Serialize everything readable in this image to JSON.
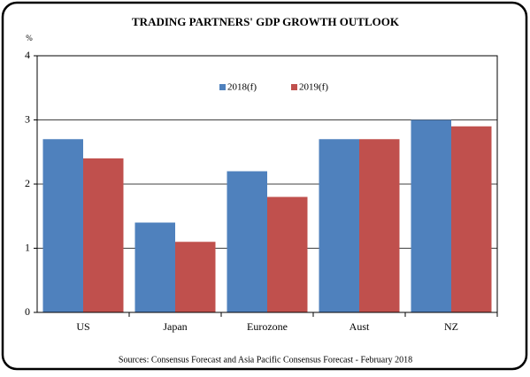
{
  "chart_data": {
    "type": "bar",
    "title": "TRADING PARTNERS' GDP GROWTH OUTLOOK",
    "y_label": "%",
    "categories": [
      "US",
      "Japan",
      "Eurozone",
      "Aust",
      "NZ"
    ],
    "series": [
      {
        "name": "2018(f)",
        "color": "#4f81bd",
        "values": [
          2.7,
          1.4,
          2.2,
          2.7,
          3.0
        ]
      },
      {
        "name": "2019(f)",
        "color": "#c0504d",
        "values": [
          2.4,
          1.1,
          1.8,
          2.7,
          2.9
        ]
      }
    ],
    "ylim": [
      0,
      4
    ],
    "yticks": [
      0,
      1,
      2,
      3,
      4
    ],
    "grid": true,
    "legend": "top",
    "source": "Sources:  Consensus Forecast and Asia Pacific Consensus Forecast - February 2018"
  }
}
